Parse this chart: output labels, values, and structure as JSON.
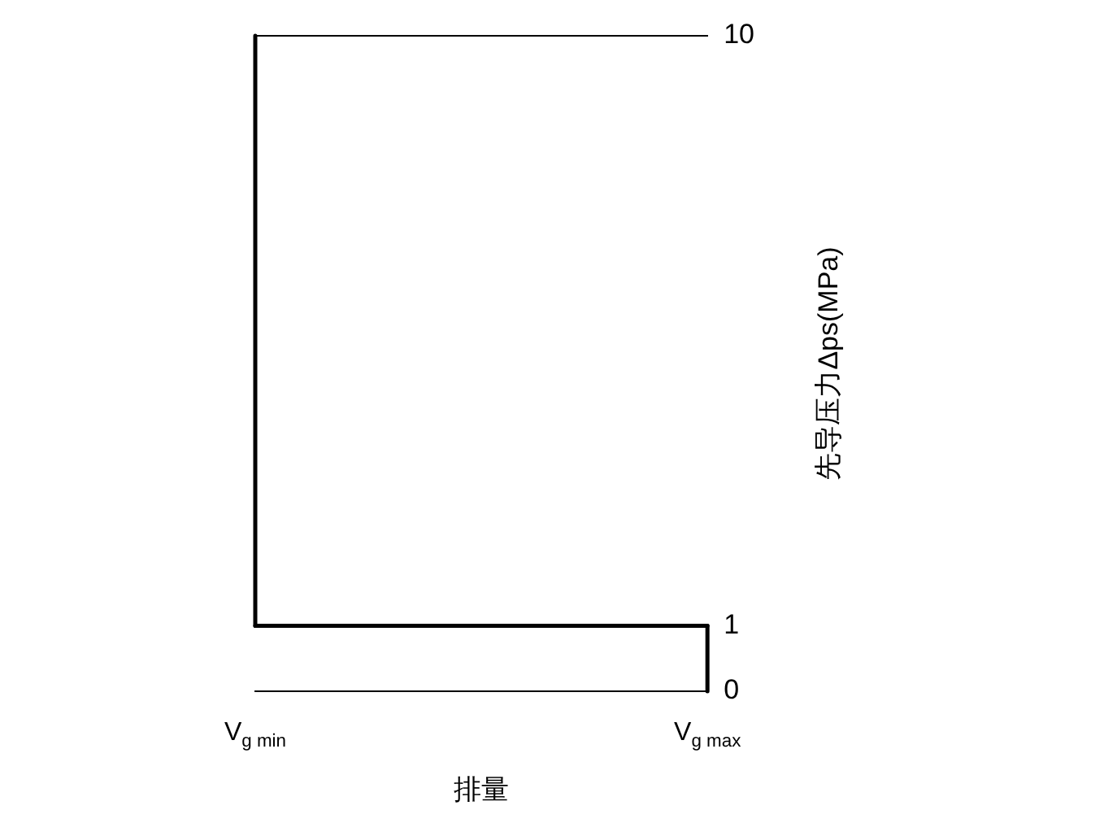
{
  "chart_data": {
    "type": "line",
    "xlabel": "排量",
    "ylabel": "先导压力Δps(MPa)",
    "categories": [
      "V$_{g min}$",
      "V$_{g max}$"
    ],
    "series": [
      {
        "x": [
          "V$_{g min}$",
          "V$_{g min}$"
        ],
        "values": [
          10,
          1
        ],
        "color": "#000000"
      },
      {
        "x": [
          "V$_{g min}$",
          "V$_{g max}$"
        ],
        "values": [
          1,
          1
        ],
        "color": "#000000"
      },
      {
        "x": [
          "V$_{g max}$",
          "V$_{g max}$"
        ],
        "values": [
          1,
          0
        ],
        "color": "#000000"
      }
    ],
    "ylim": [
      0,
      10
    ],
    "yticks": [
      0,
      1,
      10
    ],
    "legend": false,
    "marker": "none",
    "line_style": "solid"
  }
}
